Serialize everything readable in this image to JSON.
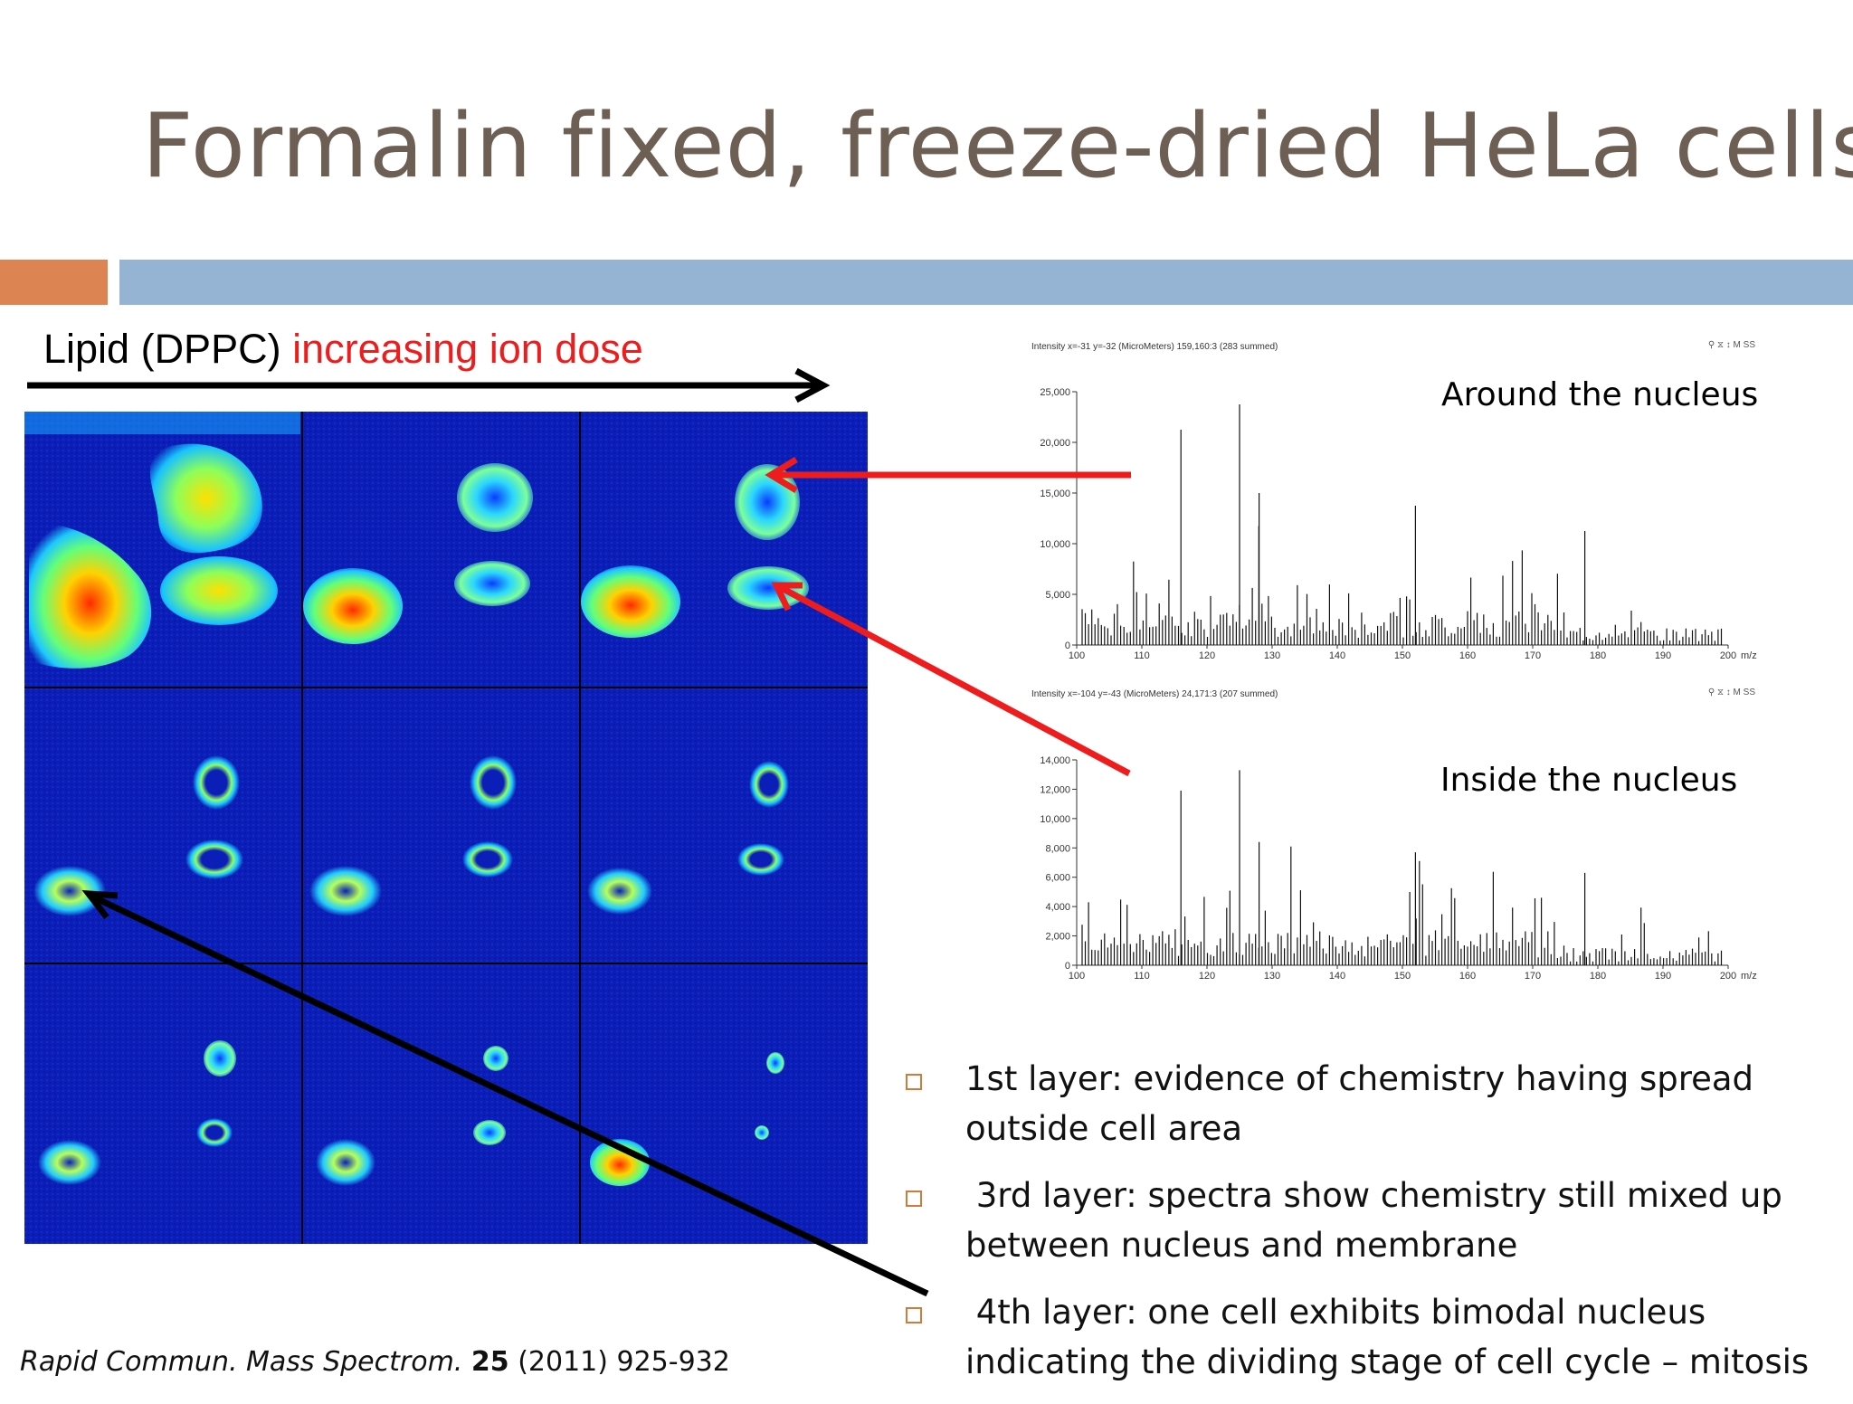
{
  "slide": {
    "title": "Formalin fixed, freeze-dried HeLa cells"
  },
  "header": {
    "lipid_label": "Lipid (DPPC) ",
    "dose_label": "increasing ion dose"
  },
  "spectra": [
    {
      "caption": "Intensity x=-31 y=-32 (MicroMeters) 159,160:3 (283 summed)",
      "tools": "⚲ ⧖ ↕ M SS",
      "region": "Around the nucleus",
      "y_ticks": [
        "0",
        "5,000",
        "10,000",
        "15,000",
        "20,000",
        "25,000"
      ],
      "x_ticks": [
        "100",
        "110",
        "120",
        "130",
        "140",
        "150",
        "160",
        "170",
        "180",
        "190",
        "200"
      ],
      "x_unit": "m/z"
    },
    {
      "caption": "Intensity x=-104 y=-43 (MicroMeters) 24,171:3 (207 summed)",
      "tools": "⚲ ⧖ ↕ M SS",
      "region": "Inside the nucleus",
      "y_ticks": [
        "0",
        "2,000",
        "4,000",
        "6,000",
        "8,000",
        "10,000",
        "12,000",
        "14,000"
      ],
      "x_ticks": [
        "100",
        "110",
        "120",
        "130",
        "140",
        "150",
        "160",
        "170",
        "180",
        "190",
        "200"
      ],
      "x_unit": "m/z"
    }
  ],
  "bullets": [
    {
      "line1": "1st layer: evidence of chemistry having spread",
      "line2": "outside cell area"
    },
    {
      "line1": " 3rd layer: spectra show chemistry still mixed up",
      "line2": "between nucleus and membrane"
    },
    {
      "line1": " 4th layer: one cell exhibits bimodal nucleus",
      "line2": "indicating the dividing stage of cell cycle – mitosis"
    }
  ],
  "citation": {
    "journal": "Rapid Commun. Mass Spectrom.",
    "volume": "25",
    "rest": " (2011) 925-932"
  },
  "colors": {
    "title": "#6e5f55",
    "accent_orange": "#dd8552",
    "accent_blue": "#95b3d3",
    "arrow_red": "#ee1c1c",
    "heatmap_bg": "#0b1fb8"
  }
}
